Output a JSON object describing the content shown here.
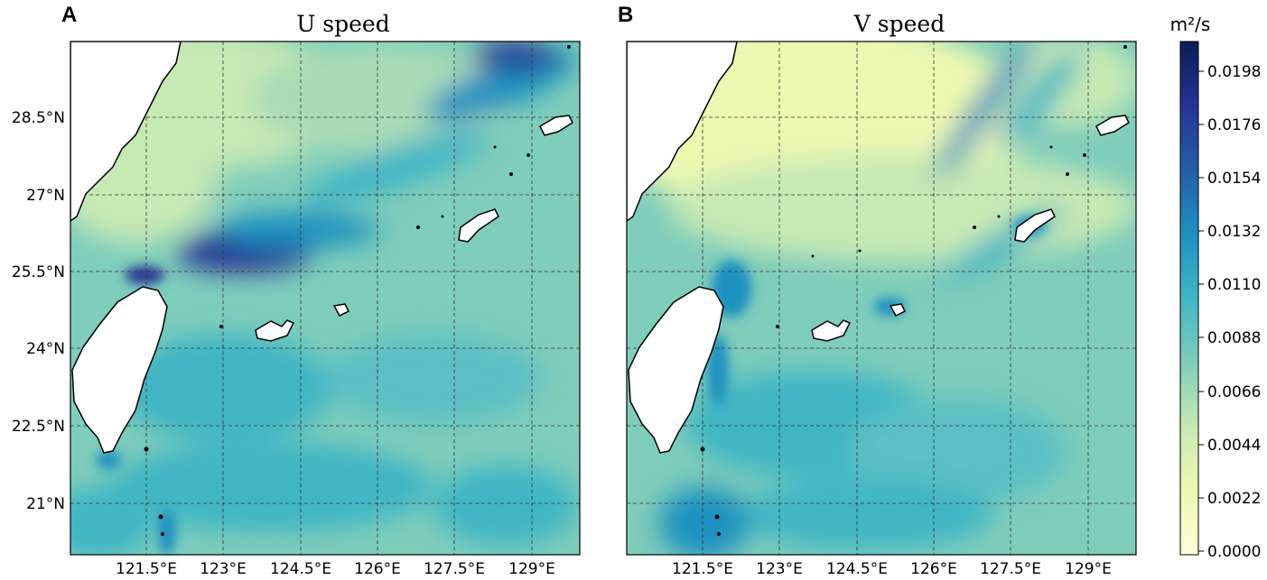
{
  "panels": [
    {
      "letter": "A",
      "title": "U speed"
    },
    {
      "letter": "B",
      "title": "V speed"
    }
  ],
  "lon_ticks": [
    "121.5°E",
    "123°E",
    "124.5°E",
    "126°E",
    "127.5°E",
    "129°E"
  ],
  "lat_ticks": [
    "28.5°N",
    "27°N",
    "25.5°N",
    "24°N",
    "22.5°N",
    "21°N"
  ],
  "colorbar": {
    "unit_label": "m²/s",
    "ticks": [
      "0.0198",
      "0.0176",
      "0.0154",
      "0.0132",
      "0.0110",
      "0.0088",
      "0.0066",
      "0.0044",
      "0.0022",
      "0.0000"
    ],
    "colors": [
      "#ffffd9",
      "#edf8b1",
      "#c7e9b4",
      "#7fcdbb",
      "#41b6c4",
      "#1d91c0",
      "#225ea8",
      "#253494",
      "#081d58"
    ]
  },
  "chart_data": [
    {
      "type": "heatmap",
      "title": "U speed",
      "x_ticks": [
        "121.5°E",
        "123°E",
        "124.5°E",
        "126°E",
        "127.5°E",
        "129°E"
      ],
      "y_ticks": [
        "28.5°N",
        "27°N",
        "25.5°N",
        "24°N",
        "22.5°N",
        "21°N"
      ],
      "value_range": [
        0.0,
        0.0198
      ],
      "colorbar_unit": "m²/s"
    },
    {
      "type": "heatmap",
      "title": "V speed",
      "x_ticks": [
        "121.5°E",
        "123°E",
        "124.5°E",
        "126°E",
        "127.5°E",
        "129°E"
      ],
      "y_ticks": [
        "28.5°N",
        "27°N",
        "25.5°N",
        "24°N",
        "22.5°N",
        "21°N"
      ],
      "value_range": [
        0.0,
        0.0198
      ],
      "colorbar_unit": "m²/s"
    }
  ]
}
